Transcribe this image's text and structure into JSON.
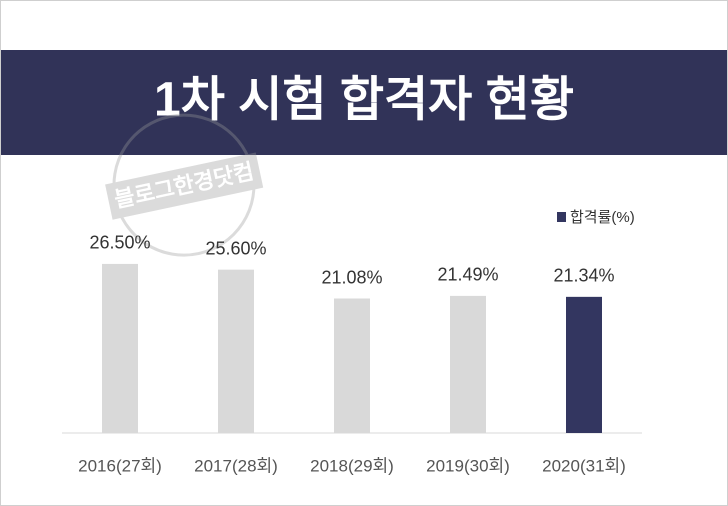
{
  "chart_data": {
    "type": "bar",
    "title": "1차 시험 합격자 현황",
    "watermark": "블로그한경닷컴",
    "categories": [
      "2016(27회)",
      "2017(28회)",
      "2018(29회)",
      "2019(30회)",
      "2020(31회)"
    ],
    "series": [
      {
        "name": "합격률(%)",
        "color": "#333660",
        "values": [
          26.5,
          25.6,
          21.08,
          21.49,
          21.34
        ],
        "value_labels": [
          "26.50%",
          "25.60%",
          "21.08%",
          "21.49%",
          "21.34%"
        ],
        "colors": [
          "#d9d9d9",
          "#d9d9d9",
          "#d9d9d9",
          "#d9d9d9",
          "#333660"
        ]
      }
    ],
    "legend": "top-right"
  }
}
